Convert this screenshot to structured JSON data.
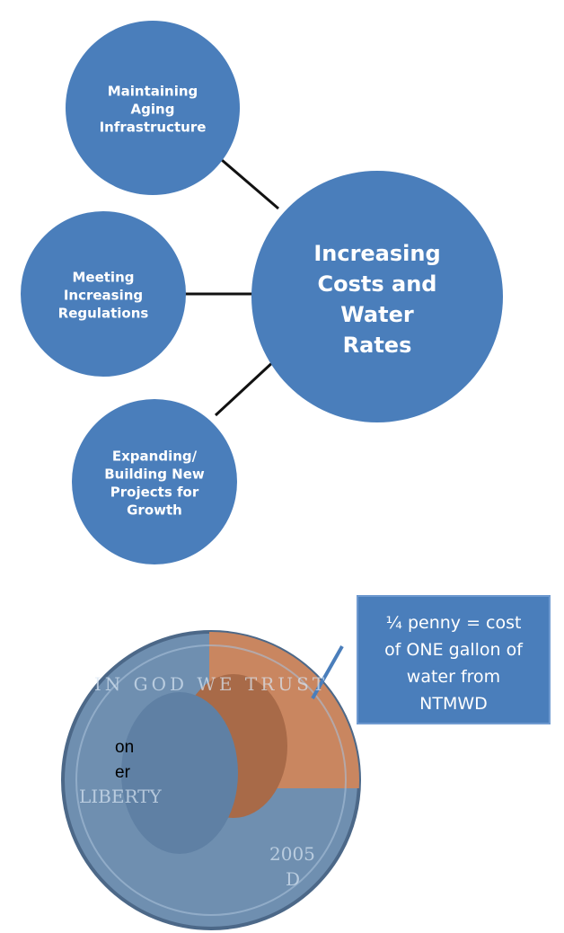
{
  "diagram": {
    "center": {
      "lines": [
        "Increasing",
        "Costs and",
        "Water",
        "Rates"
      ]
    },
    "nodes": [
      {
        "lines": [
          "Maintaining",
          "Aging",
          "Infrastructure"
        ]
      },
      {
        "lines": [
          "Meeting",
          "Increasing",
          "Regulations"
        ]
      },
      {
        "lines": [
          "Expanding/",
          "Building New",
          "Projects for",
          "Growth"
        ]
      }
    ],
    "callout": {
      "lines": [
        "¼ penny = cost",
        "of ONE gallon of",
        "water from",
        "NTMWD"
      ]
    },
    "coin": {
      "motto": "IN GOD WE TRUST",
      "liberty": "LIBERTY",
      "year": "2005",
      "mint": "D"
    },
    "side_text": [
      "on",
      "er"
    ]
  }
}
